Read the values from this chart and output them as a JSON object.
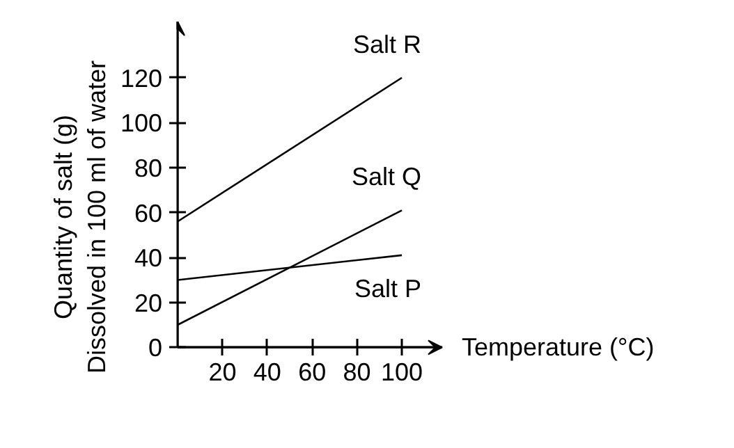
{
  "chart_data": {
    "type": "line",
    "xlabel": "Temperature (°C)",
    "ylabel": "Quantity of salt (g)\nDissolved in 100 ml of water",
    "x": [
      0,
      100
    ],
    "series": [
      {
        "name": "Salt R",
        "color": "#000000",
        "values": [
          56,
          120
        ]
      },
      {
        "name": "Salt Q",
        "color": "#000000",
        "values": [
          10,
          61
        ]
      },
      {
        "name": "Salt P",
        "color": "#000000",
        "values": [
          30,
          41
        ]
      }
    ],
    "xlim": [
      0,
      118
    ],
    "ylim": [
      0,
      145
    ],
    "xticks": [
      20,
      40,
      60,
      80,
      100
    ],
    "yticks": [
      0,
      20,
      40,
      60,
      80,
      100,
      120
    ],
    "grid": false,
    "marker": "none",
    "line_style": "solid"
  }
}
